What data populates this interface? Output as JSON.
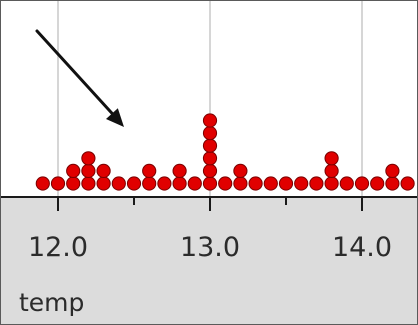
{
  "chart_data": {
    "type": "dot plot",
    "xlabel": "temp",
    "xlim": [
      11.7,
      14.4
    ],
    "ticks": [
      {
        "value": 12.0,
        "label": "12.0",
        "labeled": true
      },
      {
        "value": 12.5,
        "label": "",
        "labeled": false
      },
      {
        "value": 13.0,
        "label": "13.0",
        "labeled": true
      },
      {
        "value": 13.5,
        "label": "",
        "labeled": false
      },
      {
        "value": 14.0,
        "label": "14.0",
        "labeled": true
      }
    ],
    "gridlines": [
      12.0,
      13.0,
      14.0
    ],
    "stacks": [
      {
        "x": 11.9,
        "count": 1
      },
      {
        "x": 12.0,
        "count": 1
      },
      {
        "x": 12.1,
        "count": 2
      },
      {
        "x": 12.2,
        "count": 3
      },
      {
        "x": 12.3,
        "count": 2
      },
      {
        "x": 12.4,
        "count": 1
      },
      {
        "x": 12.5,
        "count": 1
      },
      {
        "x": 12.6,
        "count": 2
      },
      {
        "x": 12.7,
        "count": 1
      },
      {
        "x": 12.8,
        "count": 2
      },
      {
        "x": 12.9,
        "count": 1
      },
      {
        "x": 13.0,
        "count": 6
      },
      {
        "x": 13.1,
        "count": 1
      },
      {
        "x": 13.2,
        "count": 2
      },
      {
        "x": 13.3,
        "count": 1
      },
      {
        "x": 13.4,
        "count": 1
      },
      {
        "x": 13.5,
        "count": 1
      },
      {
        "x": 13.6,
        "count": 1
      },
      {
        "x": 13.7,
        "count": 1
      },
      {
        "x": 13.8,
        "count": 3
      },
      {
        "x": 13.9,
        "count": 1
      },
      {
        "x": 14.0,
        "count": 1
      },
      {
        "x": 14.1,
        "count": 1
      },
      {
        "x": 14.2,
        "count": 2
      },
      {
        "x": 14.3,
        "count": 1
      }
    ],
    "annotation": {
      "type": "arrow",
      "target_x": 12.5
    },
    "colors": {
      "dot_fill": "#e00000",
      "dot_stroke": "#7a0000",
      "axis_panel": "#dcdcdc",
      "gridline": "#d6d6d6",
      "axis_line": "#1a1a1a",
      "arrow": "#111111"
    }
  }
}
